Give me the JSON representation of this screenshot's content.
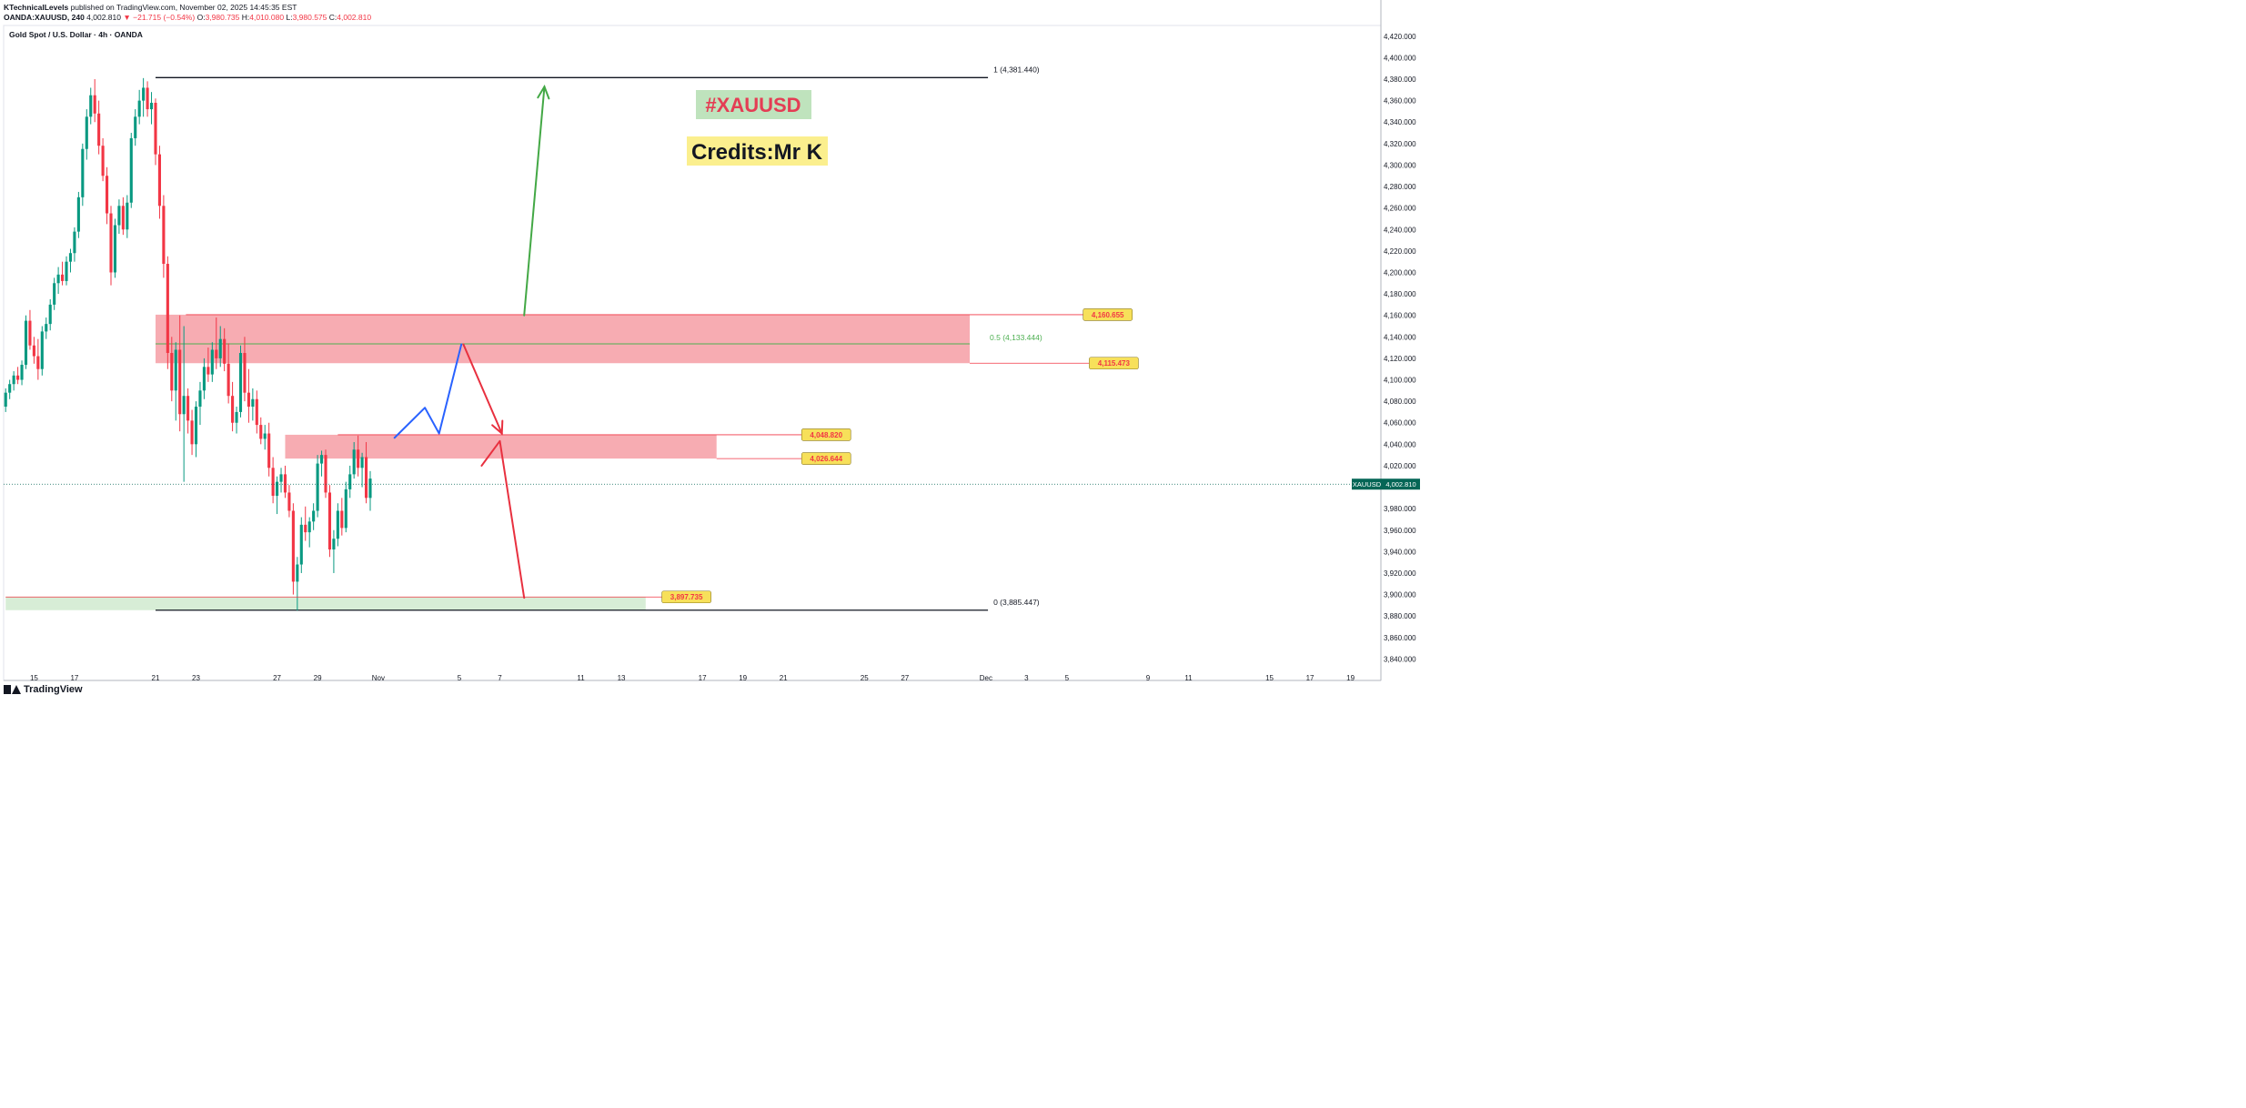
{
  "header": {
    "publisher": "KTechnicalLevels",
    "published_text": "published on TradingView.com, November 02, 2025 14:45:35 EST",
    "symbol_line_prefix": "OANDA:XAUUSD, 240",
    "last": "4,002.810",
    "change": "▼ −21.715 (−0.54%)",
    "o_label": "O:",
    "o_value": "3,980.735",
    "h_label": "H:",
    "h_value": "4,010.080",
    "l_label": "L:",
    "l_value": "3,980.575",
    "c_label": "C:",
    "c_value": "4,002.810"
  },
  "footer": {
    "brand": "TradingView",
    "logo_icon": "tradingview-logo-icon"
  },
  "chart_data": {
    "type": "candlestick",
    "title": "Gold Spot / U.S. Dollar · 4h · OANDA",
    "symbol_tag": "XAUUSD",
    "last_price_label": "4,002.810",
    "last_price": 4002.81,
    "y_range": [
      3820,
      4430
    ],
    "y_ticks": [
      {
        "v": 4420,
        "label": "4,420.000"
      },
      {
        "v": 4400,
        "label": "4,400.000"
      },
      {
        "v": 4380,
        "label": "4,380.000"
      },
      {
        "v": 4360,
        "label": "4,360.000"
      },
      {
        "v": 4340,
        "label": "4,340.000"
      },
      {
        "v": 4320,
        "label": "4,320.000"
      },
      {
        "v": 4300,
        "label": "4,300.000"
      },
      {
        "v": 4280,
        "label": "4,280.000"
      },
      {
        "v": 4260,
        "label": "4,260.000"
      },
      {
        "v": 4240,
        "label": "4,240.000"
      },
      {
        "v": 4220,
        "label": "4,220.000"
      },
      {
        "v": 4200,
        "label": "4,200.000"
      },
      {
        "v": 4180,
        "label": "4,180.000"
      },
      {
        "v": 4160,
        "label": "4,160.000"
      },
      {
        "v": 4140,
        "label": "4,140.000"
      },
      {
        "v": 4120,
        "label": "4,120.000"
      },
      {
        "v": 4100,
        "label": "4,100.000"
      },
      {
        "v": 4080,
        "label": "4,080.000"
      },
      {
        "v": 4060,
        "label": "4,060.000"
      },
      {
        "v": 4040,
        "label": "4,040.000"
      },
      {
        "v": 4020,
        "label": "4,020.000"
      },
      {
        "v": 3980,
        "label": "3,980.000"
      },
      {
        "v": 3960,
        "label": "3,960.000"
      },
      {
        "v": 3940,
        "label": "3,940.000"
      },
      {
        "v": 3920,
        "label": "3,920.000"
      },
      {
        "v": 3900,
        "label": "3,900.000"
      },
      {
        "v": 3880,
        "label": "3,880.000"
      },
      {
        "v": 3860,
        "label": "3,860.000"
      },
      {
        "v": 3840,
        "label": "3,840.000"
      }
    ],
    "x_labels": [
      {
        "label": "15",
        "day": 15
      },
      {
        "label": "17",
        "day": 17
      },
      {
        "label": "21",
        "day": 21
      },
      {
        "label": "23",
        "day": 23
      },
      {
        "label": "27",
        "day": 27
      },
      {
        "label": "29",
        "day": 29
      },
      {
        "label": "Nov",
        "day": 32
      },
      {
        "label": "5",
        "day": 36
      },
      {
        "label": "7",
        "day": 38
      },
      {
        "label": "11",
        "day": 42
      },
      {
        "label": "13",
        "day": 44
      },
      {
        "label": "17",
        "day": 48
      },
      {
        "label": "19",
        "day": 50
      },
      {
        "label": "21",
        "day": 52
      },
      {
        "label": "25",
        "day": 56
      },
      {
        "label": "27",
        "day": 58
      },
      {
        "label": "Dec",
        "day": 62
      },
      {
        "label": "3",
        "day": 64
      },
      {
        "label": "5",
        "day": 66
      },
      {
        "label": "9",
        "day": 70
      },
      {
        "label": "11",
        "day": 72
      },
      {
        "label": "15",
        "day": 76
      },
      {
        "label": "17",
        "day": 78
      },
      {
        "label": "19",
        "day": 80
      }
    ],
    "x_range": [
      13.5,
      81.5
    ],
    "candles": [
      [
        13.6,
        4075,
        4092,
        4070,
        4088
      ],
      [
        13.8,
        4088,
        4100,
        4082,
        4096
      ],
      [
        14.0,
        4096,
        4108,
        4090,
        4104
      ],
      [
        14.2,
        4104,
        4112,
        4096,
        4100
      ],
      [
        14.4,
        4100,
        4118,
        4095,
        4114
      ],
      [
        14.6,
        4114,
        4160,
        4110,
        4155
      ],
      [
        14.8,
        4155,
        4165,
        4128,
        4132
      ],
      [
        15.0,
        4132,
        4140,
        4115,
        4122
      ],
      [
        15.2,
        4122,
        4138,
        4100,
        4110
      ],
      [
        15.4,
        4110,
        4150,
        4104,
        4145
      ],
      [
        15.6,
        4145,
        4158,
        4138,
        4152
      ],
      [
        15.8,
        4152,
        4175,
        4146,
        4170
      ],
      [
        16.0,
        4170,
        4195,
        4165,
        4190
      ],
      [
        16.2,
        4190,
        4205,
        4180,
        4198
      ],
      [
        16.4,
        4198,
        4210,
        4188,
        4192
      ],
      [
        16.6,
        4192,
        4215,
        4188,
        4210
      ],
      [
        16.8,
        4210,
        4222,
        4200,
        4218
      ],
      [
        17.0,
        4218,
        4242,
        4210,
        4238
      ],
      [
        17.2,
        4238,
        4275,
        4232,
        4270
      ],
      [
        17.4,
        4270,
        4320,
        4262,
        4315
      ],
      [
        17.6,
        4315,
        4352,
        4305,
        4345
      ],
      [
        17.8,
        4345,
        4372,
        4338,
        4365
      ],
      [
        18.0,
        4365,
        4380,
        4340,
        4348
      ],
      [
        18.2,
        4348,
        4360,
        4310,
        4318
      ],
      [
        18.4,
        4318,
        4325,
        4285,
        4290
      ],
      [
        18.6,
        4290,
        4298,
        4245,
        4255
      ],
      [
        18.8,
        4255,
        4262,
        4188,
        4200
      ],
      [
        19.0,
        4200,
        4250,
        4195,
        4244
      ],
      [
        19.2,
        4244,
        4268,
        4236,
        4262
      ],
      [
        19.4,
        4262,
        4270,
        4235,
        4240
      ],
      [
        19.6,
        4240,
        4272,
        4232,
        4265
      ],
      [
        19.8,
        4265,
        4330,
        4260,
        4325
      ],
      [
        20.0,
        4325,
        4352,
        4318,
        4345
      ],
      [
        20.2,
        4345,
        4370,
        4338,
        4360
      ],
      [
        20.4,
        4360,
        4381,
        4345,
        4372
      ],
      [
        20.6,
        4372,
        4378,
        4345,
        4352
      ],
      [
        20.8,
        4352,
        4368,
        4338,
        4358
      ],
      [
        21.0,
        4358,
        4362,
        4300,
        4310
      ],
      [
        21.2,
        4310,
        4318,
        4250,
        4262
      ],
      [
        21.4,
        4262,
        4272,
        4195,
        4208
      ],
      [
        21.6,
        4208,
        4215,
        4110,
        4125
      ],
      [
        21.8,
        4125,
        4140,
        4080,
        4090
      ],
      [
        22.0,
        4090,
        4135,
        4062,
        4128
      ],
      [
        22.2,
        4128,
        4160,
        4052,
        4068
      ],
      [
        22.4,
        4068,
        4150,
        4005,
        4085
      ],
      [
        22.6,
        4085,
        4092,
        4050,
        4062
      ],
      [
        22.8,
        4062,
        4072,
        4030,
        4040
      ],
      [
        23.0,
        4040,
        4080,
        4028,
        4075
      ],
      [
        23.2,
        4075,
        4098,
        4058,
        4090
      ],
      [
        23.4,
        4090,
        4120,
        4082,
        4112
      ],
      [
        23.6,
        4112,
        4130,
        4098,
        4105
      ],
      [
        23.8,
        4105,
        4135,
        4098,
        4128
      ],
      [
        24.0,
        4128,
        4158,
        4110,
        4120
      ],
      [
        24.2,
        4120,
        4150,
        4112,
        4138
      ],
      [
        24.4,
        4138,
        4148,
        4108,
        4115
      ],
      [
        24.6,
        4115,
        4134,
        4078,
        4085
      ],
      [
        24.8,
        4085,
        4098,
        4052,
        4060
      ],
      [
        25.0,
        4060,
        4075,
        4050,
        4070
      ],
      [
        25.2,
        4070,
        4132,
        4065,
        4125
      ],
      [
        25.4,
        4125,
        4140,
        4080,
        4088
      ],
      [
        25.6,
        4088,
        4110,
        4060,
        4075
      ],
      [
        25.8,
        4075,
        4092,
        4062,
        4082
      ],
      [
        26.0,
        4082,
        4090,
        4050,
        4058
      ],
      [
        26.2,
        4058,
        4065,
        4040,
        4045
      ],
      [
        26.4,
        4045,
        4058,
        4035,
        4050
      ],
      [
        26.6,
        4050,
        4060,
        4010,
        4018
      ],
      [
        26.8,
        4018,
        4028,
        3985,
        3992
      ],
      [
        27.0,
        3992,
        4010,
        3975,
        4005
      ],
      [
        27.2,
        4005,
        4018,
        3995,
        4012
      ],
      [
        27.4,
        4012,
        4020,
        3990,
        3995
      ],
      [
        27.6,
        3995,
        4002,
        3972,
        3978
      ],
      [
        27.8,
        3978,
        3985,
        3900,
        3912
      ],
      [
        28.0,
        3912,
        3935,
        3885,
        3928
      ],
      [
        28.2,
        3928,
        3972,
        3920,
        3965
      ],
      [
        28.4,
        3965,
        3982,
        3950,
        3958
      ],
      [
        28.6,
        3958,
        3972,
        3944,
        3968
      ],
      [
        28.8,
        3968,
        3985,
        3960,
        3978
      ],
      [
        29.0,
        3978,
        4030,
        3972,
        4022
      ],
      [
        29.2,
        4022,
        4034,
        4010,
        4030
      ],
      [
        29.4,
        4030,
        4035,
        3990,
        3995
      ],
      [
        29.6,
        3995,
        4002,
        3935,
        3942
      ],
      [
        29.8,
        3942,
        3960,
        3920,
        3952
      ],
      [
        30.0,
        3952,
        3985,
        3945,
        3978
      ],
      [
        30.2,
        3978,
        3990,
        3955,
        3962
      ],
      [
        30.4,
        3962,
        4005,
        3958,
        3998
      ],
      [
        30.6,
        3998,
        4020,
        3990,
        4012
      ],
      [
        30.8,
        4012,
        4042,
        4008,
        4035
      ],
      [
        31.0,
        4035,
        4048,
        4010,
        4018
      ],
      [
        31.2,
        4018,
        4032,
        4000,
        4028
      ],
      [
        31.4,
        4028,
        4042,
        3985,
        3990
      ],
      [
        31.6,
        3990,
        4015,
        3978,
        4008
      ]
    ],
    "zones": [
      {
        "from_day": 21.0,
        "to_day": 61.2,
        "low": 4115.473,
        "high": 4160.655,
        "color": "#f7a8ae"
      },
      {
        "from_day": 27.4,
        "to_day": 48.7,
        "low": 4026.644,
        "high": 4048.82,
        "color": "#f7a8ae"
      },
      {
        "from_day": 13.6,
        "to_day": 45.2,
        "low": 3885.447,
        "high": 3897.735,
        "color": "#d5ecd4"
      }
    ],
    "fib": {
      "from_day": 21.0,
      "to_day": 62.1,
      "level_1": 4381.44,
      "level_1_label": "1 (4,381.440)",
      "level_0": 3885.447,
      "level_0_label": "0 (3,885.447)",
      "level_05": 4133.444,
      "level_05_label": "0.5 (4,133.444)"
    },
    "price_tags": [
      {
        "value": 4160.655,
        "label": "4,160.655",
        "line_from_day": 22.5,
        "tag_day": 66.8
      },
      {
        "value": 4115.473,
        "label": "4,115.473",
        "line_from_day": 61.2,
        "tag_day": 67.1
      },
      {
        "value": 4048.82,
        "label": "4,048.820",
        "line_from_day": 30.0,
        "tag_day": 52.9
      },
      {
        "value": 4026.644,
        "label": "4,026.644",
        "line_from_day": 48.7,
        "tag_day": 52.9
      },
      {
        "value": 3897.735,
        "label": "3,897.735",
        "line_from_day": 13.6,
        "tag_day": 46.0
      }
    ],
    "paths": {
      "green_up": [
        [
          39.2,
          4160
        ],
        [
          40.2,
          4373
        ]
      ],
      "blue_zigzag": [
        [
          32.8,
          4046
        ],
        [
          34.3,
          4074
        ],
        [
          35.0,
          4050
        ],
        [
          36.1,
          4133
        ]
      ],
      "red_down_1": [
        [
          36.2,
          4133
        ],
        [
          38.1,
          4050
        ]
      ],
      "red_corr": [
        [
          37.1,
          4020
        ],
        [
          38.0,
          4043
        ],
        [
          39.2,
          3897
        ]
      ]
    },
    "annotations": {
      "tag_title": "#XAUUSD",
      "credits": "Credits:Mr K",
      "tag_color": "#e43d54",
      "tag_bg": "#bfe3bd",
      "credits_bg": "#fbef8e"
    },
    "colors": {
      "up": "#089981",
      "down": "#f23645",
      "fib_mid": "#4caf50",
      "arrow_green": "#43a845",
      "arrow_blue": "#2962ff",
      "arrow_red": "#e8303f",
      "tag_bg": "#f7e05a",
      "tag_text": "#f23645",
      "last_bg": "#056656"
    }
  }
}
